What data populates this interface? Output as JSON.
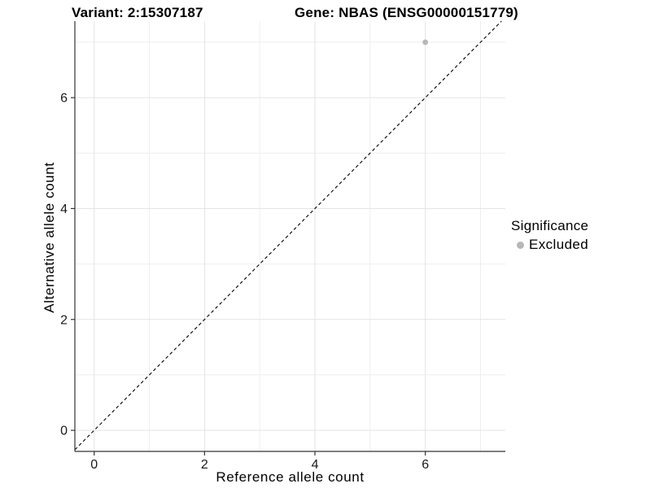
{
  "chart_data": {
    "type": "scatter",
    "titles": {
      "left": "Variant: 2:15307187",
      "right": "Gene: NBAS (ENSG00000151779)"
    },
    "xlabel": "Reference allele count",
    "ylabel": "Alternative allele count",
    "xlim": [
      -0.35,
      7.45
    ],
    "ylim": [
      -0.38,
      7.38
    ],
    "x_major_ticks": [
      0,
      2,
      4,
      6
    ],
    "y_major_ticks": [
      0,
      2,
      4,
      6
    ],
    "x_minor_gridlines": [
      1,
      3,
      5,
      7
    ],
    "y_minor_gridlines": [
      1,
      3,
      5,
      7
    ],
    "grid": true,
    "identity_line": {
      "slope": 1,
      "intercept": 0,
      "style": "dashed",
      "color": "#000000"
    },
    "series": [
      {
        "name": "Excluded",
        "color": "#b7b7b7",
        "points": [
          {
            "x": 6,
            "y": 7
          }
        ]
      }
    ],
    "legend": {
      "title": "Significance",
      "position": "right",
      "items": [
        {
          "label": "Excluded",
          "color": "#b7b7b7"
        }
      ]
    },
    "colors": {
      "background": "#ffffff",
      "major_grid": "#e3e3e3",
      "minor_grid": "#eeeeee",
      "axis_line": "#333333",
      "tick_mark": "#333333",
      "tick_text": "#1a1a1a"
    }
  }
}
